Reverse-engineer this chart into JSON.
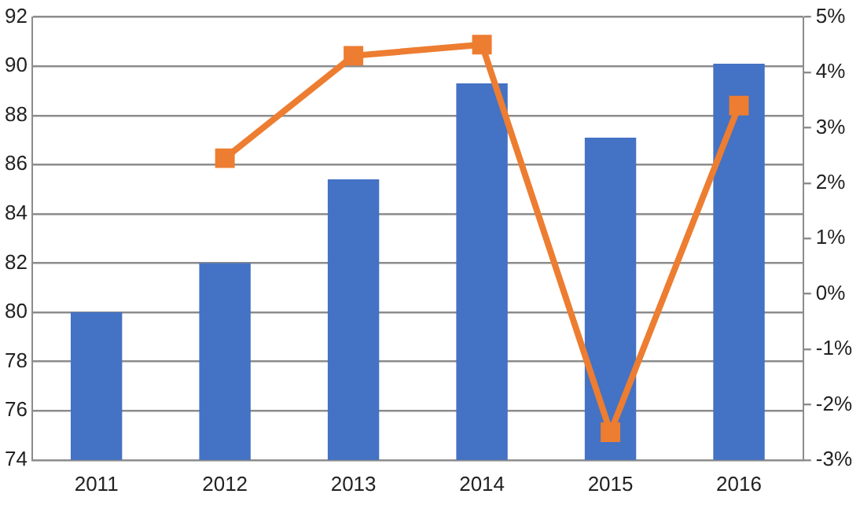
{
  "chart_data": {
    "type": "bar",
    "categories": [
      "2011",
      "2012",
      "2013",
      "2014",
      "2015",
      "2016"
    ],
    "series": [
      {
        "color": "#4472c4",
        "values": [
          80,
          82,
          85.4,
          89.3,
          87.1,
          90.1
        ]
      },
      {
        "type": "line",
        "axis": "y2",
        "color": "#ed7d31",
        "values": [
          null,
          2.45,
          4.3,
          4.5,
          -2.5,
          3.4
        ],
        "marker": "square"
      }
    ],
    "ylim": [
      74,
      92
    ],
    "yticks": [
      74,
      76,
      78,
      80,
      82,
      84,
      86,
      88,
      90,
      92
    ],
    "y2lim": [
      -3,
      5
    ],
    "y2ticks": [
      {
        "value": -3,
        "label": "-3%"
      },
      {
        "value": -2,
        "label": "-2%"
      },
      {
        "value": -1,
        "label": "-1%"
      },
      {
        "value": 0,
        "label": "0%"
      },
      {
        "value": 1,
        "label": "1%"
      },
      {
        "value": 2,
        "label": "2%"
      },
      {
        "value": 3,
        "label": "3%"
      },
      {
        "value": 4,
        "label": "4%"
      },
      {
        "value": 5,
        "label": "5%"
      }
    ],
    "grid": "y",
    "legend": false
  }
}
